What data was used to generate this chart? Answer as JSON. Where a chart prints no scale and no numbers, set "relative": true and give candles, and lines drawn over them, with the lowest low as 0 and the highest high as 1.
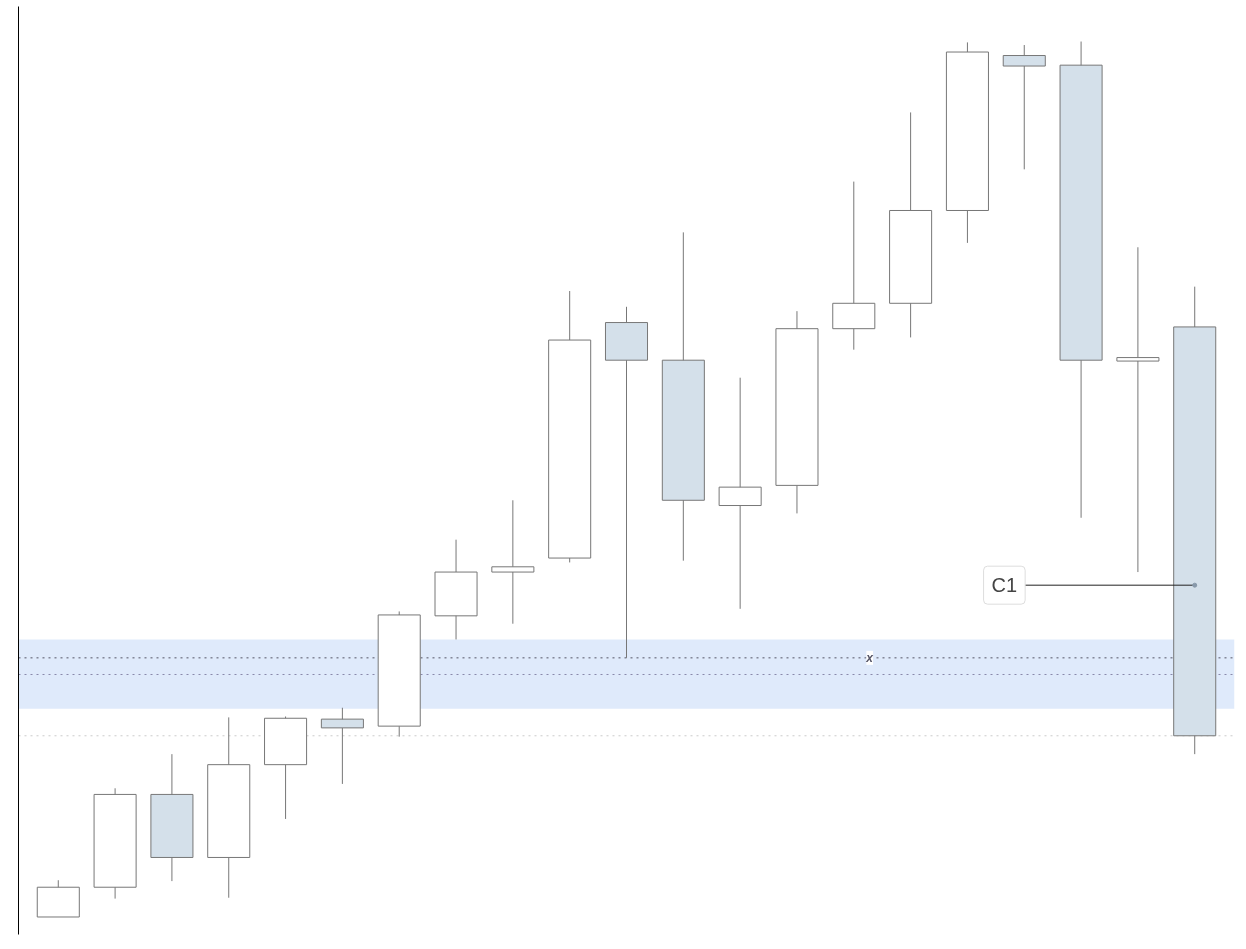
{
  "chart_data": {
    "type": "candlestick",
    "relative": true,
    "categories": [
      null,
      null,
      null,
      null,
      null,
      null,
      null,
      null,
      null,
      null,
      null,
      null,
      null,
      null,
      null,
      null,
      null,
      null,
      null,
      null,
      null
    ],
    "ohlc": [
      [
        0,
        0.042,
        0,
        0.034
      ],
      [
        0.034,
        0.147,
        0.021,
        0.14
      ],
      [
        0.14,
        0.186,
        0.041,
        0.068
      ],
      [
        0.068,
        0.228,
        0.022,
        0.174
      ],
      [
        0.174,
        0.229,
        0.112,
        0.227
      ],
      [
        0.226,
        0.239,
        0.152,
        0.216
      ],
      [
        0.218,
        0.349,
        0.206,
        0.345
      ],
      [
        0.344,
        0.431,
        0.317,
        0.394
      ],
      [
        0.394,
        0.476,
        0.335,
        0.4
      ],
      [
        0.41,
        0.715,
        0.405,
        0.659
      ],
      [
        0.679,
        0.697,
        0.296,
        0.636
      ],
      [
        0.636,
        0.782,
        0.407,
        0.476
      ],
      [
        0.47,
        0.616,
        0.352,
        0.491
      ],
      [
        0.493,
        0.692,
        0.461,
        0.672
      ],
      [
        0.672,
        0.84,
        0.648,
        0.701
      ],
      [
        0.701,
        0.919,
        0.662,
        0.807
      ],
      [
        0.807,
        0.999,
        0.77,
        0.988
      ],
      [
        0.984,
        0.996,
        0.854,
        0.972
      ],
      [
        0.973,
        1,
        0.456,
        0.636
      ],
      [
        0.635,
        0.765,
        0.394,
        0.639
      ],
      [
        0.674,
        0.72,
        0.186,
        0.207
      ]
    ],
    "colors": [
      "#ffffff",
      "#ffffff",
      "#d4e0ea",
      "#ffffff",
      "#ffffff",
      "#d4e0ea",
      "#ffffff",
      "#ffffff",
      "#ffffff",
      "#ffffff",
      "#d4e0ea",
      "#d4e0ea",
      "#ffffff",
      "#ffffff",
      "#ffffff",
      "#ffffff",
      "#ffffff",
      "#d4e0ea",
      "#d4e0ea",
      "#ffffff",
      "#d4e0ea"
    ],
    "bands": [
      {
        "axis": "y",
        "from": 0.238,
        "to": 0.317,
        "color": "#dce8fb"
      }
    ],
    "ref_lines": [
      {
        "axis": "y",
        "value": 0.296,
        "label": "x",
        "line_style": "dotted",
        "color": "#555566"
      },
      {
        "axis": "y",
        "value": 0.277,
        "line_style": "dotted",
        "color": "#8888aa"
      },
      {
        "axis": "y",
        "value": 0.207,
        "line_style": "dotted",
        "color": "#cccccc"
      }
    ],
    "annotations": [
      {
        "text": "C1",
        "y": 0.379
      }
    ],
    "grid": false
  }
}
